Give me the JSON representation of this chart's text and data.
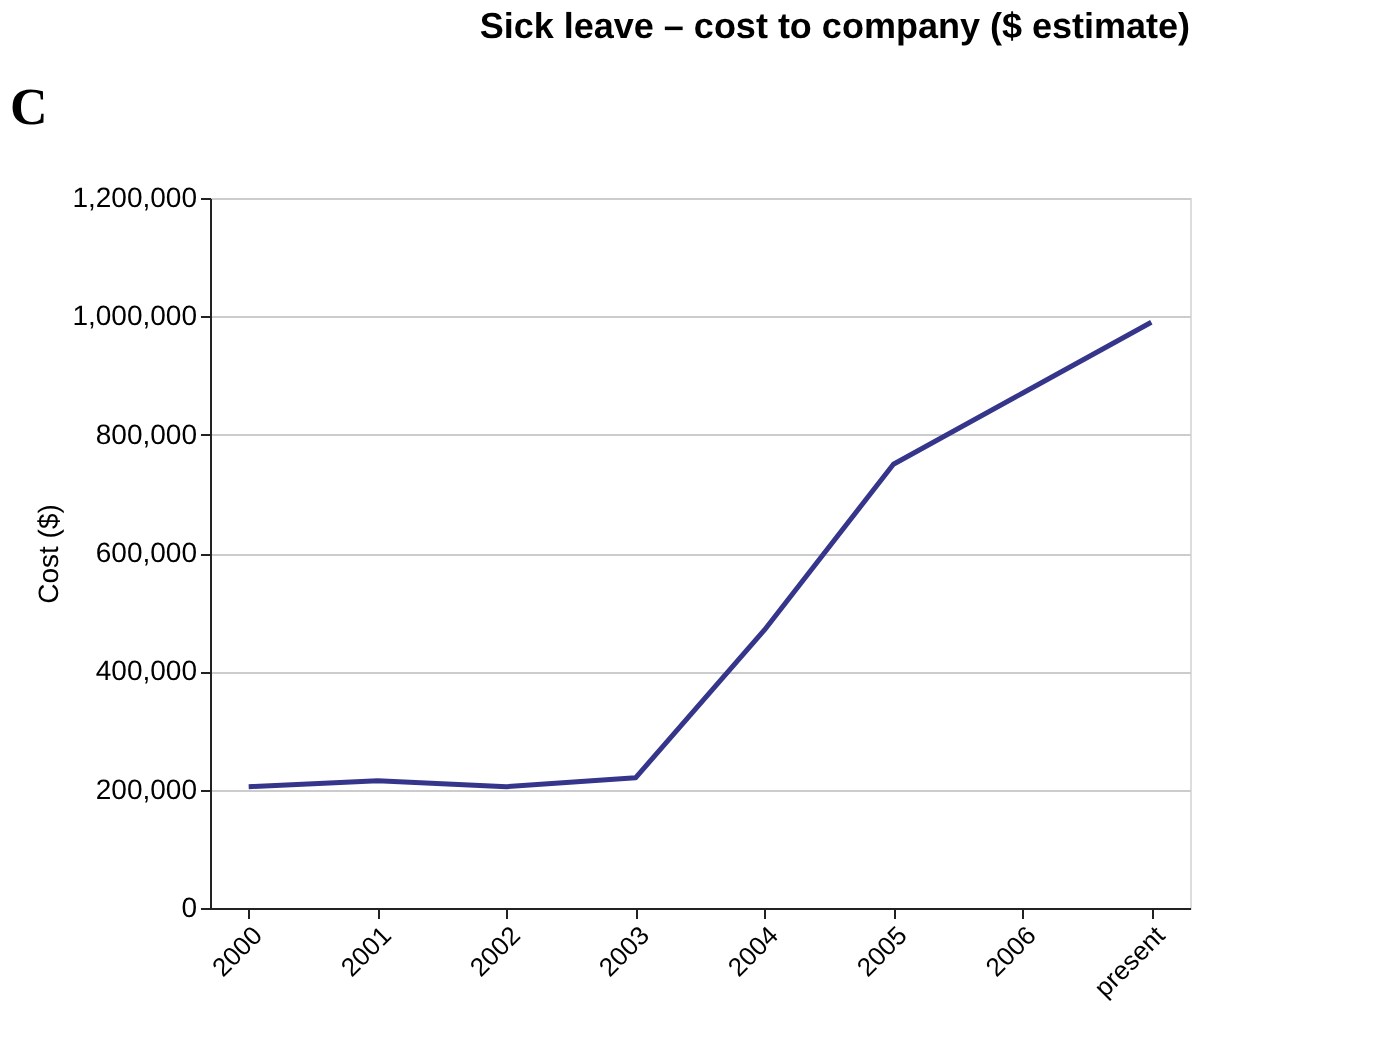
{
  "chart_data": {
    "type": "line",
    "title": "Sick leave – cost to company ($ estimate)",
    "ylabel": "Cost ($)",
    "categories": [
      "2000",
      "2001",
      "2002",
      "2003",
      "2004",
      "2005",
      "2006",
      "present"
    ],
    "series": [
      {
        "color": "#35358c",
        "values": [
          205000,
          215000,
          205000,
          220000,
          470000,
          750000,
          870000,
          990000
        ]
      }
    ],
    "ylim": [
      0,
      1200000
    ],
    "yticks": [
      0,
      {
        "value": 200000,
        "label": "200,000"
      },
      {
        "value": 400000,
        "label": "400,000"
      },
      {
        "value": 600000,
        "label": "600,000"
      },
      {
        "value": 800000,
        "label": "800,000"
      },
      {
        "value": 1000000,
        "label": "1,000,000"
      },
      {
        "value": 1200000,
        "label": "1,200,000"
      }
    ],
    "grid": "y",
    "marker": "none",
    "line_style": "solid",
    "annotations": [
      "C"
    ]
  }
}
